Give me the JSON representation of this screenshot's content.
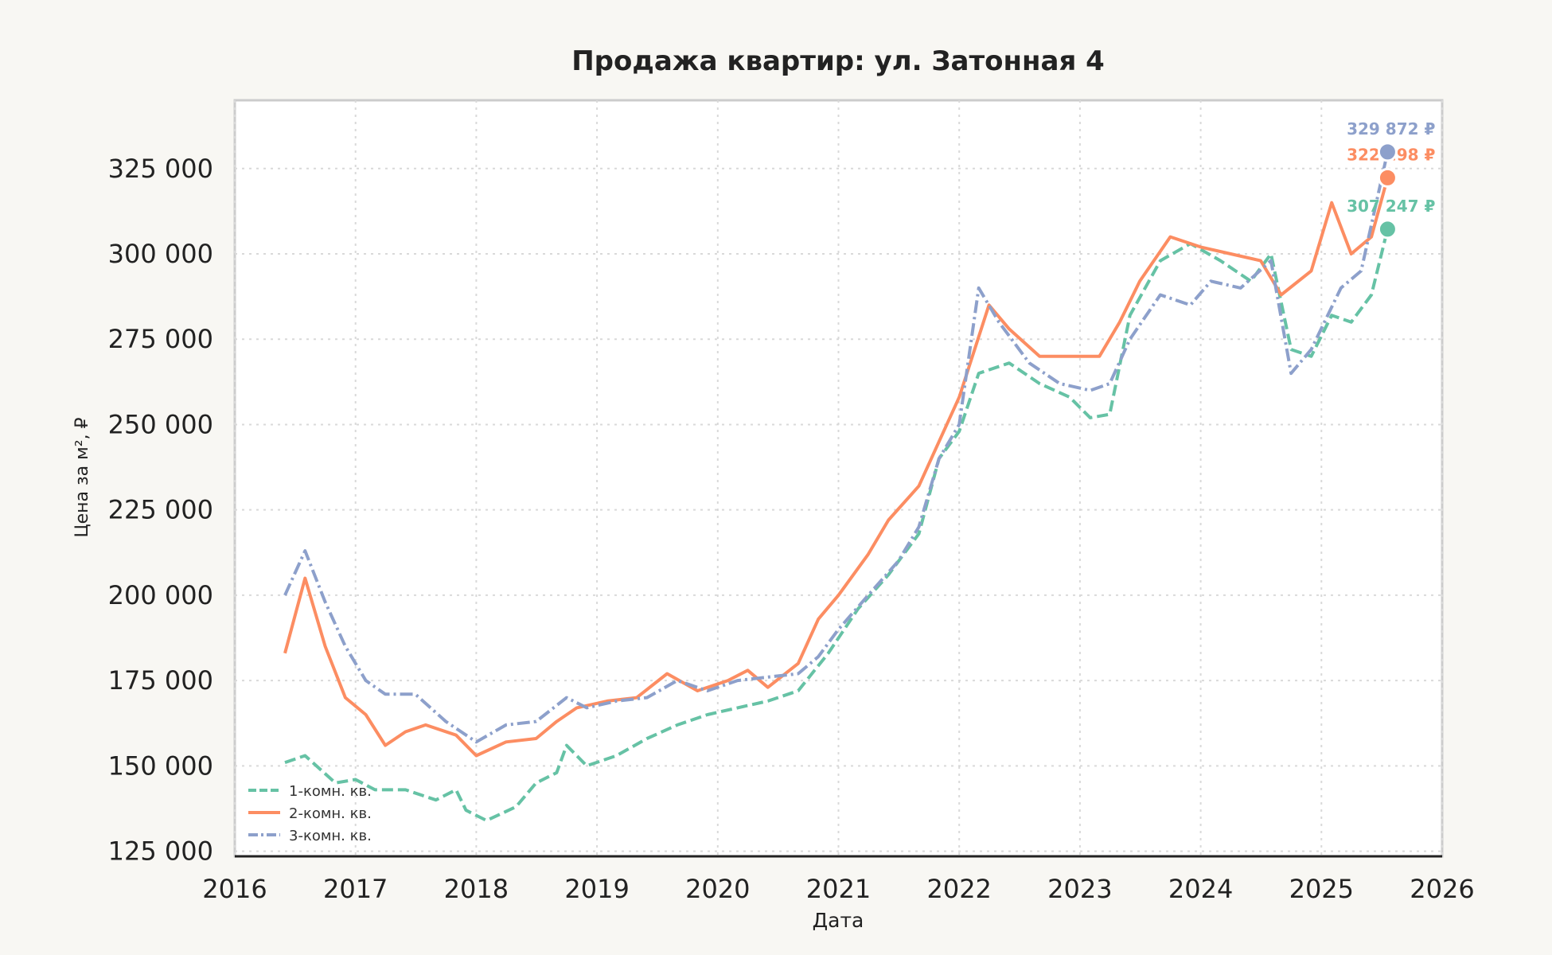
{
  "chart_data": {
    "type": "line",
    "title": "Продажа квартир: ул. Затонная 4",
    "xlabel": "Дата",
    "ylabel": "Цена за м², ₽",
    "xlim": [
      2016,
      2026
    ],
    "ylim": [
      123500,
      345000
    ],
    "x_ticks": [
      "2016",
      "2017",
      "2018",
      "2019",
      "2020",
      "2021",
      "2022",
      "2023",
      "2024",
      "2025",
      "2026"
    ],
    "y_ticks": [
      "125 000",
      "150 000",
      "175 000",
      "200 000",
      "225 000",
      "250 000",
      "275 000",
      "300 000",
      "325 000"
    ],
    "grid": true,
    "legend_position": "bottom-left",
    "series": [
      {
        "name": "1-комн. кв.",
        "color": "#66c2a5",
        "style": "dashed",
        "last_label": "307 247 ₽",
        "last_value": 307247,
        "points": [
          [
            "2016-06-01",
            151000
          ],
          [
            "2016-08-01",
            153000
          ],
          [
            "2016-11-01",
            145000
          ],
          [
            "2017-01-01",
            146000
          ],
          [
            "2017-03-01",
            143000
          ],
          [
            "2017-06-01",
            143000
          ],
          [
            "2017-09-01",
            140000
          ],
          [
            "2017-11-01",
            143000
          ],
          [
            "2017-12-01",
            137000
          ],
          [
            "2018-02-01",
            134000
          ],
          [
            "2018-05-01",
            138000
          ],
          [
            "2018-07-01",
            145000
          ],
          [
            "2018-09-01",
            148000
          ],
          [
            "2018-10-01",
            156000
          ],
          [
            "2018-12-01",
            150000
          ],
          [
            "2019-03-01",
            153000
          ],
          [
            "2019-06-01",
            158000
          ],
          [
            "2019-09-01",
            162000
          ],
          [
            "2019-12-01",
            165000
          ],
          [
            "2020-03-01",
            167000
          ],
          [
            "2020-06-01",
            169000
          ],
          [
            "2020-09-01",
            172000
          ],
          [
            "2020-12-01",
            183000
          ],
          [
            "2021-03-01",
            196000
          ],
          [
            "2021-06-01",
            206000
          ],
          [
            "2021-09-01",
            218000
          ],
          [
            "2021-11-01",
            240000
          ],
          [
            "2022-01-01",
            248000
          ],
          [
            "2022-03-01",
            265000
          ],
          [
            "2022-06-01",
            268000
          ],
          [
            "2022-09-01",
            262000
          ],
          [
            "2022-12-01",
            258000
          ],
          [
            "2023-02-01",
            252000
          ],
          [
            "2023-04-01",
            253000
          ],
          [
            "2023-06-01",
            282000
          ],
          [
            "2023-09-01",
            298000
          ],
          [
            "2023-12-01",
            303000
          ],
          [
            "2024-03-01",
            298000
          ],
          [
            "2024-06-01",
            292000
          ],
          [
            "2024-08-01",
            300000
          ],
          [
            "2024-10-01",
            272000
          ],
          [
            "2024-12-01",
            270000
          ],
          [
            "2025-02-01",
            282000
          ],
          [
            "2025-04-01",
            280000
          ],
          [
            "2025-06-01",
            288000
          ],
          [
            "2025-07-20",
            307247
          ]
        ]
      },
      {
        "name": "2-комн. кв.",
        "color": "#fc8d62",
        "style": "solid",
        "last_label": "322 298 ₽",
        "last_value": 322298,
        "points": [
          [
            "2016-06-01",
            183000
          ],
          [
            "2016-08-01",
            205000
          ],
          [
            "2016-10-01",
            185000
          ],
          [
            "2016-12-01",
            170000
          ],
          [
            "2017-02-01",
            165000
          ],
          [
            "2017-04-01",
            156000
          ],
          [
            "2017-06-01",
            160000
          ],
          [
            "2017-08-01",
            162000
          ],
          [
            "2017-11-01",
            159000
          ],
          [
            "2018-01-01",
            153000
          ],
          [
            "2018-04-01",
            157000
          ],
          [
            "2018-07-01",
            158000
          ],
          [
            "2018-09-01",
            163000
          ],
          [
            "2018-11-01",
            167000
          ],
          [
            "2019-02-01",
            169000
          ],
          [
            "2019-05-01",
            170000
          ],
          [
            "2019-08-01",
            177000
          ],
          [
            "2019-11-01",
            172000
          ],
          [
            "2020-02-01",
            175000
          ],
          [
            "2020-04-01",
            178000
          ],
          [
            "2020-06-01",
            173000
          ],
          [
            "2020-09-01",
            180000
          ],
          [
            "2020-11-01",
            193000
          ],
          [
            "2021-01-01",
            200000
          ],
          [
            "2021-04-01",
            212000
          ],
          [
            "2021-06-01",
            222000
          ],
          [
            "2021-09-01",
            232000
          ],
          [
            "2021-11-01",
            245000
          ],
          [
            "2022-01-01",
            258000
          ],
          [
            "2022-04-01",
            285000
          ],
          [
            "2022-06-01",
            278000
          ],
          [
            "2022-09-01",
            270000
          ],
          [
            "2022-12-01",
            270000
          ],
          [
            "2023-03-01",
            270000
          ],
          [
            "2023-05-01",
            280000
          ],
          [
            "2023-07-01",
            292000
          ],
          [
            "2023-10-01",
            305000
          ],
          [
            "2024-01-01",
            302000
          ],
          [
            "2024-04-01",
            300000
          ],
          [
            "2024-07-01",
            298000
          ],
          [
            "2024-09-01",
            288000
          ],
          [
            "2024-12-01",
            295000
          ],
          [
            "2025-02-01",
            315000
          ],
          [
            "2025-04-01",
            300000
          ],
          [
            "2025-06-01",
            305000
          ],
          [
            "2025-07-20",
            322298
          ]
        ]
      },
      {
        "name": "3-комн. кв.",
        "color": "#8da0cb",
        "style": "dashdot",
        "last_label": "329 872 ₽",
        "last_value": 329872,
        "points": [
          [
            "2016-06-01",
            200000
          ],
          [
            "2016-08-01",
            213000
          ],
          [
            "2016-10-01",
            198000
          ],
          [
            "2016-12-01",
            185000
          ],
          [
            "2017-02-01",
            175000
          ],
          [
            "2017-04-01",
            171000
          ],
          [
            "2017-07-01",
            171000
          ],
          [
            "2017-10-01",
            163000
          ],
          [
            "2018-01-01",
            157000
          ],
          [
            "2018-04-01",
            162000
          ],
          [
            "2018-07-01",
            163000
          ],
          [
            "2018-10-01",
            170000
          ],
          [
            "2018-12-01",
            167000
          ],
          [
            "2019-03-01",
            169000
          ],
          [
            "2019-06-01",
            170000
          ],
          [
            "2019-09-01",
            175000
          ],
          [
            "2019-12-01",
            172000
          ],
          [
            "2020-03-01",
            175000
          ],
          [
            "2020-06-01",
            176000
          ],
          [
            "2020-09-01",
            177000
          ],
          [
            "2020-11-01",
            182000
          ],
          [
            "2021-01-01",
            190000
          ],
          [
            "2021-04-01",
            200000
          ],
          [
            "2021-07-01",
            210000
          ],
          [
            "2021-09-01",
            220000
          ],
          [
            "2021-11-01",
            240000
          ],
          [
            "2022-01-01",
            250000
          ],
          [
            "2022-03-01",
            290000
          ],
          [
            "2022-05-01",
            280000
          ],
          [
            "2022-08-01",
            268000
          ],
          [
            "2022-11-01",
            262000
          ],
          [
            "2023-02-01",
            260000
          ],
          [
            "2023-04-01",
            262000
          ],
          [
            "2023-06-01",
            275000
          ],
          [
            "2023-09-01",
            288000
          ],
          [
            "2023-12-01",
            285000
          ],
          [
            "2024-02-01",
            292000
          ],
          [
            "2024-05-01",
            290000
          ],
          [
            "2024-08-01",
            298000
          ],
          [
            "2024-10-01",
            265000
          ],
          [
            "2024-12-01",
            272000
          ],
          [
            "2025-03-01",
            290000
          ],
          [
            "2025-05-01",
            295000
          ],
          [
            "2025-07-20",
            329872
          ]
        ]
      }
    ]
  }
}
